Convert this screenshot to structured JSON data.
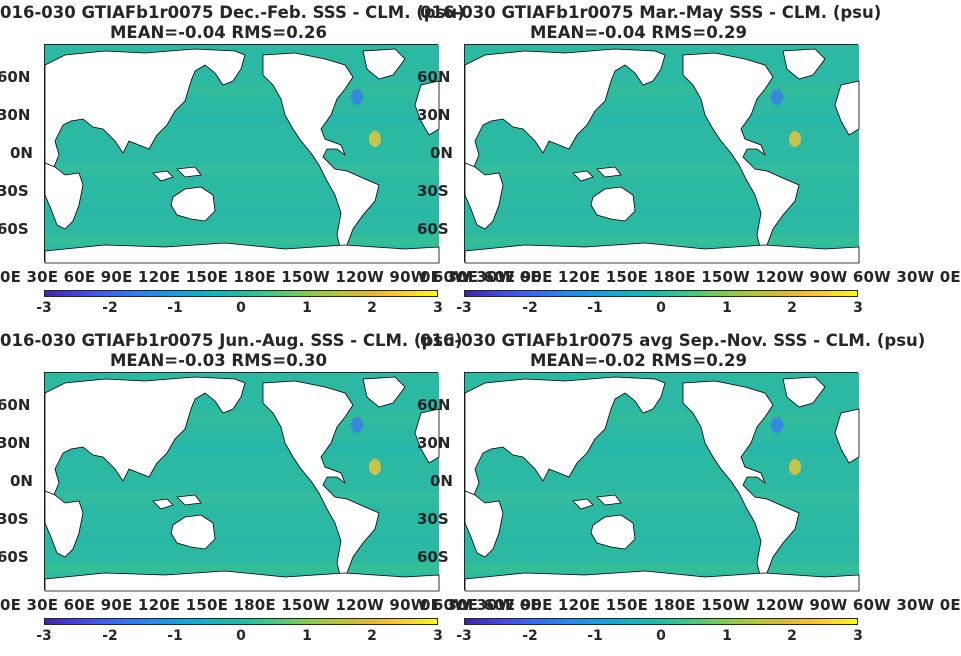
{
  "panels": [
    {
      "title": "016-030 GTIAFb1r0075  Dec.-Feb. SSS - CLM. (psu)",
      "stats": "MEAN=-0.04   RMS=0.26"
    },
    {
      "title": "016-030 GTIAFb1r0075 Mar.-May SSS - CLM. (psu)",
      "stats": "MEAN=-0.04   RMS=0.29"
    },
    {
      "title": "016-030 GTIAFb1r0075 Jun.-Aug. SSS - CLM. (psu)",
      "stats": "MEAN=-0.03   RMS=0.30"
    },
    {
      "title": "016-030 GTIAFb1r0075 avg Sep.-Nov. SSS - CLM. (psu)",
      "stats": "MEAN=-0.02   RMS=0.29"
    }
  ],
  "lat_labels": [
    "60N",
    "30N",
    "0N",
    "30S",
    "60S"
  ],
  "lon_labels": "0E 30E 60E 90E 120E 150E 180E 150W 120W 90W 60W 30W 0E",
  "colorbar_ticks": [
    "-3",
    "-2",
    "-1",
    "0",
    "1",
    "2",
    "3"
  ],
  "colors": {
    "ocean": "#2bb9a3",
    "land": "#ffffff",
    "positive": "#e6c43a",
    "negative": "#3a7fe8"
  }
}
